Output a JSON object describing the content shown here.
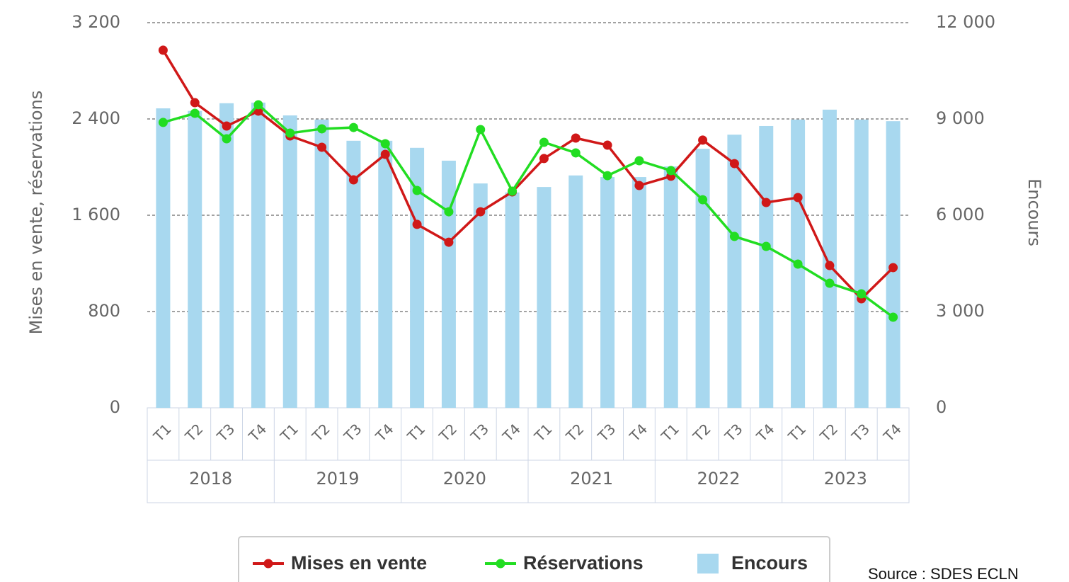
{
  "chart_data": {
    "type": "combo",
    "y_axis_label": "Mises en vente, réservations",
    "y2_axis_label": "Encours",
    "source": "Source : SDES ECLN",
    "categories": [
      "T1",
      "T2",
      "T3",
      "T4",
      "T1",
      "T2",
      "T3",
      "T4",
      "T1",
      "T2",
      "T3",
      "T4",
      "T1",
      "T2",
      "T3",
      "T4",
      "T1",
      "T2",
      "T3",
      "T4",
      "T1",
      "T2",
      "T3",
      "T4"
    ],
    "category_groups": [
      "2018",
      "2019",
      "2020",
      "2021",
      "2022",
      "2023"
    ],
    "ylim": [
      0,
      3200
    ],
    "yticks": [
      0,
      800,
      {
        "value": 1600,
        "label": "1 600"
      },
      {
        "value": 2400,
        "label": "2 400"
      },
      {
        "value": 3200,
        "label": "3 200"
      }
    ],
    "y2lim": [
      0,
      12000
    ],
    "y2ticks": [
      0,
      {
        "value": 3000,
        "label": "3 000"
      },
      {
        "value": 6000,
        "label": "6 000"
      },
      {
        "value": 9000,
        "label": "9 000"
      },
      {
        "value": 12000,
        "label": "12 000"
      }
    ],
    "grid": true,
    "legend": "bottom",
    "series": [
      {
        "name": "Mises en vente",
        "type": "line",
        "color": "#d01818",
        "values": [
          2971,
          2535,
          2341,
          2465,
          2259,
          2165,
          1894,
          2106,
          1524,
          1376,
          1629,
          1794,
          2071,
          2241,
          2182,
          1847,
          1924,
          2224,
          2029,
          1706,
          1747,
          1182,
          906,
          1165
        ]
      },
      {
        "name": "Réservations",
        "type": "line",
        "color": "#22dd22",
        "values": [
          2371,
          2447,
          2235,
          2518,
          2282,
          2318,
          2329,
          2194,
          1806,
          1629,
          2312,
          1800,
          2206,
          2118,
          1929,
          2053,
          1971,
          1729,
          1424,
          1341,
          1194,
          1035,
          947,
          753
        ]
      },
      {
        "name": "Encours",
        "type": "bar",
        "axis": "y2",
        "color": "#a8d8ef",
        "values": [
          9330,
          9250,
          9490,
          9510,
          9110,
          8980,
          8320,
          8320,
          8100,
          7700,
          6990,
          6710,
          6880,
          7240,
          7190,
          7190,
          7520,
          8070,
          8510,
          8780,
          8980,
          9290,
          8980,
          8930
        ]
      }
    ]
  }
}
